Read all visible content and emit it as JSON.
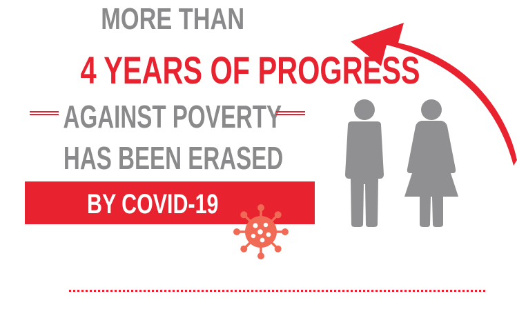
{
  "headline": {
    "line1": "MORE THAN",
    "line2": "4 YEARS OF PROGRESS",
    "line3": "AGAINST POVERTY",
    "line4": "HAS BEEN ERASED",
    "banner": "BY COVID-19"
  },
  "colors": {
    "accent_red": "#e8222f",
    "text_gray": "#8a8a8c",
    "figure_gray": "#909093",
    "virus_salmon": "#f06a55",
    "background": "#ffffff"
  },
  "icons": [
    "curved-arrow-icon",
    "virus-icon",
    "man-icon",
    "woman-icon"
  ]
}
